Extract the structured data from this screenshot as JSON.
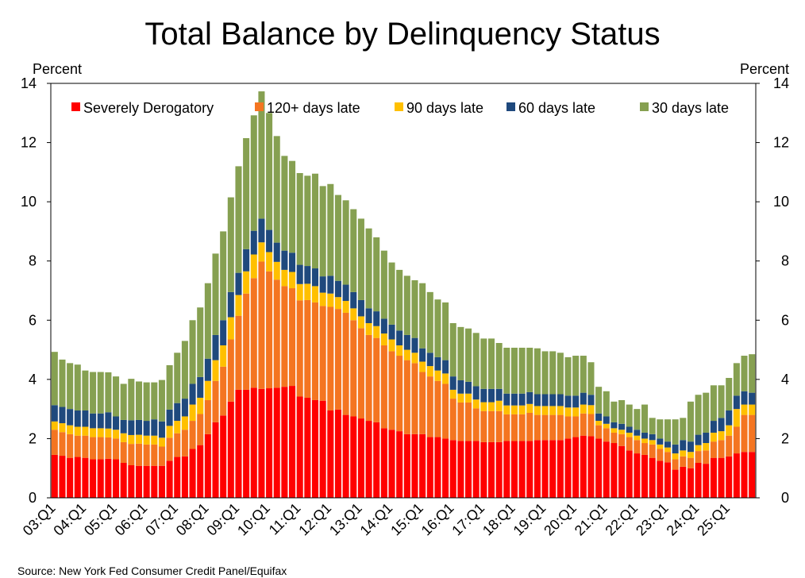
{
  "chart_data": {
    "type": "bar",
    "stacked": true,
    "title": "Total Balance by Delinquency Status",
    "ylabel_left": "Percent",
    "ylabel_right": "Percent",
    "xlabel": "",
    "ylim": [
      0,
      14
    ],
    "yticks": [
      0,
      2,
      4,
      6,
      8,
      10,
      12,
      14
    ],
    "grid": false,
    "legend_position": "top",
    "source": "Source: New York Fed Consumer Credit Panel/Equifax",
    "x_tick_labels": [
      "03:Q1",
      "04:Q1",
      "05:Q1",
      "06:Q1",
      "07:Q1",
      "08:Q1",
      "09:Q1",
      "10:Q1",
      "11:Q1",
      "12:Q1",
      "13:Q1",
      "14:Q1",
      "15:Q1",
      "16:Q1",
      "17:Q1",
      "18:Q1",
      "19:Q1",
      "20:Q1",
      "21:Q1",
      "22:Q1",
      "23:Q1",
      "24:Q1",
      "25:Q1"
    ],
    "quarters_per_tick": 4,
    "series": [
      {
        "name": "Severely Derogatory",
        "color": "#ff0000",
        "values": [
          1.45,
          1.42,
          1.35,
          1.38,
          1.35,
          1.3,
          1.3,
          1.32,
          1.3,
          1.18,
          1.1,
          1.08,
          1.08,
          1.08,
          1.08,
          1.25,
          1.38,
          1.4,
          1.65,
          1.78,
          2.15,
          2.55,
          2.78,
          3.25,
          3.65,
          3.65,
          3.72,
          3.68,
          3.7,
          3.72,
          3.75,
          3.78,
          3.42,
          3.38,
          3.3,
          3.28,
          2.95,
          2.98,
          2.8,
          2.75,
          2.68,
          2.6,
          2.55,
          2.35,
          2.3,
          2.25,
          2.15,
          2.15,
          2.15,
          2.05,
          2.05,
          2.0,
          1.95,
          1.92,
          1.92,
          1.92,
          1.88,
          1.88,
          1.88,
          1.92,
          1.92,
          1.92,
          1.92,
          1.95,
          1.95,
          1.95,
          1.95,
          2.0,
          2.05,
          2.1,
          2.08,
          2.0,
          1.9,
          1.85,
          1.75,
          1.6,
          1.5,
          1.45,
          1.35,
          1.25,
          1.2,
          0.95,
          1.05,
          1.0,
          1.18,
          1.15,
          1.35,
          1.35,
          1.4,
          1.5,
          1.55,
          1.55
        ]
      },
      {
        "name": "120+ days late",
        "color": "#f47521",
        "values": [
          0.85,
          0.8,
          0.8,
          0.72,
          0.75,
          0.75,
          0.75,
          0.72,
          0.7,
          0.7,
          0.72,
          0.75,
          0.72,
          0.72,
          0.65,
          0.78,
          0.8,
          0.9,
          0.95,
          1.05,
          1.15,
          1.4,
          1.65,
          2.1,
          2.5,
          3.25,
          3.7,
          4.3,
          3.95,
          3.65,
          3.4,
          3.3,
          3.25,
          3.3,
          3.3,
          3.2,
          3.5,
          3.4,
          3.45,
          3.25,
          3.05,
          2.9,
          2.85,
          2.8,
          2.65,
          2.55,
          2.5,
          2.4,
          2.1,
          2.05,
          1.9,
          1.85,
          1.4,
          1.3,
          1.3,
          1.1,
          1.05,
          1.05,
          1.05,
          0.9,
          0.9,
          0.9,
          0.95,
          0.85,
          0.85,
          0.85,
          0.85,
          0.75,
          0.7,
          0.75,
          0.75,
          0.45,
          0.45,
          0.35,
          0.4,
          0.45,
          0.45,
          0.4,
          0.45,
          0.4,
          0.35,
          0.35,
          0.35,
          0.35,
          0.4,
          0.45,
          0.55,
          0.6,
          0.7,
          0.9,
          1.25,
          1.25
        ]
      },
      {
        "name": "90 days late",
        "color": "#ffc000",
        "values": [
          0.28,
          0.3,
          0.3,
          0.3,
          0.3,
          0.3,
          0.3,
          0.3,
          0.3,
          0.3,
          0.3,
          0.3,
          0.3,
          0.3,
          0.3,
          0.4,
          0.42,
          0.45,
          0.55,
          0.55,
          0.65,
          0.7,
          0.72,
          0.75,
          0.7,
          0.75,
          0.8,
          0.65,
          0.65,
          0.6,
          0.55,
          0.55,
          0.55,
          0.55,
          0.55,
          0.45,
          0.45,
          0.4,
          0.4,
          0.4,
          0.4,
          0.4,
          0.4,
          0.4,
          0.4,
          0.35,
          0.35,
          0.35,
          0.35,
          0.35,
          0.35,
          0.35,
          0.3,
          0.3,
          0.3,
          0.3,
          0.3,
          0.3,
          0.35,
          0.3,
          0.3,
          0.3,
          0.3,
          0.3,
          0.3,
          0.3,
          0.3,
          0.3,
          0.3,
          0.3,
          0.3,
          0.15,
          0.15,
          0.15,
          0.15,
          0.15,
          0.15,
          0.15,
          0.15,
          0.15,
          0.15,
          0.2,
          0.2,
          0.2,
          0.2,
          0.25,
          0.3,
          0.3,
          0.35,
          0.6,
          0.35,
          0.35
        ]
      },
      {
        "name": "60 days late",
        "color": "#1f497d",
        "values": [
          0.55,
          0.55,
          0.55,
          0.55,
          0.55,
          0.5,
          0.5,
          0.55,
          0.45,
          0.45,
          0.5,
          0.5,
          0.5,
          0.55,
          0.55,
          0.55,
          0.6,
          0.6,
          0.7,
          0.7,
          0.75,
          0.85,
          0.85,
          0.85,
          0.75,
          0.75,
          0.8,
          0.8,
          0.75,
          0.65,
          0.65,
          0.65,
          0.65,
          0.6,
          0.6,
          0.55,
          0.6,
          0.55,
          0.55,
          0.55,
          0.55,
          0.5,
          0.5,
          0.5,
          0.5,
          0.5,
          0.5,
          0.5,
          0.45,
          0.45,
          0.45,
          0.45,
          0.45,
          0.45,
          0.4,
          0.45,
          0.45,
          0.45,
          0.4,
          0.4,
          0.4,
          0.4,
          0.4,
          0.4,
          0.4,
          0.4,
          0.4,
          0.4,
          0.4,
          0.4,
          0.35,
          0.25,
          0.25,
          0.2,
          0.2,
          0.2,
          0.2,
          0.2,
          0.2,
          0.2,
          0.2,
          0.3,
          0.35,
          0.35,
          0.35,
          0.35,
          0.4,
          0.45,
          0.5,
          0.45,
          0.45,
          0.4
        ]
      },
      {
        "name": "30 days late",
        "color": "#86a051",
        "values": [
          1.8,
          1.6,
          1.55,
          1.55,
          1.35,
          1.4,
          1.4,
          1.35,
          1.35,
          1.22,
          1.4,
          1.3,
          1.3,
          1.25,
          1.4,
          1.5,
          1.7,
          1.95,
          2.15,
          2.35,
          2.55,
          2.75,
          3.0,
          3.2,
          3.6,
          3.75,
          3.9,
          4.3,
          3.95,
          3.6,
          3.2,
          3.1,
          3.1,
          3.05,
          3.2,
          3.05,
          3.1,
          2.9,
          2.85,
          2.8,
          2.75,
          2.7,
          2.5,
          2.3,
          2.1,
          2.05,
          2.0,
          1.95,
          2.2,
          2.05,
          1.95,
          1.95,
          1.8,
          1.8,
          1.8,
          1.8,
          1.7,
          1.7,
          1.55,
          1.55,
          1.55,
          1.55,
          1.5,
          1.55,
          1.45,
          1.45,
          1.4,
          1.3,
          1.35,
          1.25,
          1.1,
          0.9,
          0.85,
          0.7,
          0.8,
          0.75,
          0.7,
          0.95,
          0.55,
          0.65,
          0.75,
          0.85,
          0.75,
          1.35,
          1.35,
          1.35,
          1.2,
          1.1,
          1.1,
          1.1,
          1.2,
          1.3
        ]
      }
    ]
  }
}
